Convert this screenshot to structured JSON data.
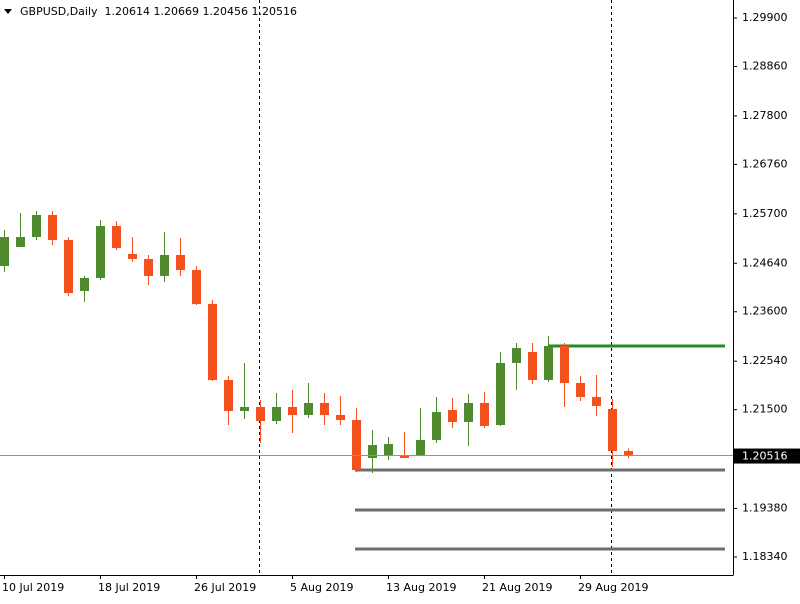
{
  "chart_data": {
    "type": "candlestick",
    "title": "GBPUSD,Daily  1.20614 1.20669 1.20456 1.20516",
    "x": [
      "10 Jul 2019",
      null,
      null,
      null,
      null,
      null,
      "18 Jul 2019",
      null,
      null,
      null,
      null,
      null,
      "26 Jul 2019",
      null,
      null,
      null,
      null,
      null,
      "5 Aug 2019",
      null,
      null,
      null,
      null,
      null,
      "13 Aug 2019",
      null,
      null,
      null,
      null,
      null,
      "21 Aug 2019",
      null,
      null,
      null,
      null,
      null,
      "29 Aug 2019",
      null,
      null,
      null
    ],
    "open": [
      1.24581,
      1.24989,
      1.25203,
      1.25675,
      1.25139,
      1.24045,
      1.24324,
      1.25439,
      1.24839,
      1.24731,
      1.24367,
      1.24817,
      1.24495,
      1.23766,
      1.22136,
      1.21471,
      1.21557,
      1.21257,
      1.21557,
      1.21386,
      1.21643,
      1.21386,
      1.21278,
      1.20463,
      1.20506,
      1.20528,
      1.20506,
      1.20849,
      1.21493,
      1.21235,
      1.21643,
      1.21171,
      1.22501,
      1.22737,
      1.22136,
      1.22865,
      1.22072,
      1.21772,
      1.21514,
      1.20614
    ],
    "high": [
      1.25353,
      1.25718,
      1.25761,
      1.25761,
      1.25203,
      1.24367,
      1.25568,
      1.25546,
      1.25203,
      1.24817,
      1.2531,
      1.25182,
      1.24581,
      1.23852,
      1.22222,
      1.22501,
      1.21707,
      1.21857,
      1.21922,
      1.22072,
      1.21857,
      1.21793,
      1.21536,
      1.21064,
      1.20914,
      1.21021,
      1.21536,
      1.21772,
      1.2175,
      1.21836,
      1.21879,
      1.22737,
      1.2293,
      1.2293,
      1.2308,
      1.2293,
      1.22222,
      1.22243,
      1.21729,
      1.20669
    ],
    "low": [
      1.24452,
      1.24989,
      1.25139,
      1.25032,
      1.23938,
      1.23809,
      1.24281,
      1.24924,
      1.24667,
      1.24174,
      1.24238,
      1.24367,
      1.23745,
      1.22115,
      1.21171,
      1.213,
      1.20785,
      1.21193,
      1.21,
      1.21321,
      1.21171,
      1.21171,
      1.20163,
      1.20142,
      1.2042,
      1.20463,
      1.20506,
      1.20785,
      1.21107,
      1.20721,
      1.21107,
      1.2115,
      1.21922,
      1.2205,
      1.22093,
      1.21557,
      1.21686,
      1.21364,
      1.2027,
      1.20456
    ],
    "close": [
      1.25203,
      1.25203,
      1.25675,
      1.25139,
      1.24002,
      1.24324,
      1.25439,
      1.24967,
      1.24731,
      1.24367,
      1.24817,
      1.24495,
      1.23766,
      1.22136,
      1.21471,
      1.21557,
      1.21257,
      1.21557,
      1.21386,
      1.21643,
      1.21386,
      1.21278,
      1.20206,
      1.20742,
      1.20764,
      1.20463,
      1.20849,
      1.2145,
      1.21235,
      1.21643,
      1.2115,
      1.22501,
      1.22823,
      1.22136,
      1.22865,
      1.22072,
      1.21772,
      1.21579,
      1.20614,
      1.20516
    ],
    "up_color": "#4f8a2e",
    "down_color": "#f4511e",
    "ylim": [
      1.17954,
      1.30286
    ],
    "yticks": [
      {
        "value": 1.299,
        "label": "1.29900"
      },
      {
        "value": 1.2886,
        "label": "1.28860"
      },
      {
        "value": 1.278,
        "label": "1.27800"
      },
      {
        "value": 1.2676,
        "label": "1.26760"
      },
      {
        "value": 1.257,
        "label": "1.25700"
      },
      {
        "value": 1.2464,
        "label": "1.24640"
      },
      {
        "value": 1.236,
        "label": "1.23600"
      },
      {
        "value": 1.2254,
        "label": "1.22540"
      },
      {
        "value": 1.215,
        "label": "1.21500"
      },
      {
        "value": 1.1938,
        "label": "1.19380"
      },
      {
        "value": 1.1834,
        "label": "1.18340"
      }
    ],
    "current_price": {
      "value": 1.20516,
      "label": "1.20516"
    },
    "levels": [
      {
        "value": 1.22865,
        "color": "#228b22"
      },
      {
        "value": 1.20206,
        "color": "#6e6e6e"
      },
      {
        "value": 1.19348,
        "color": "#6e6e6e"
      },
      {
        "value": 1.18512,
        "color": "#6e6e6e"
      }
    ]
  }
}
